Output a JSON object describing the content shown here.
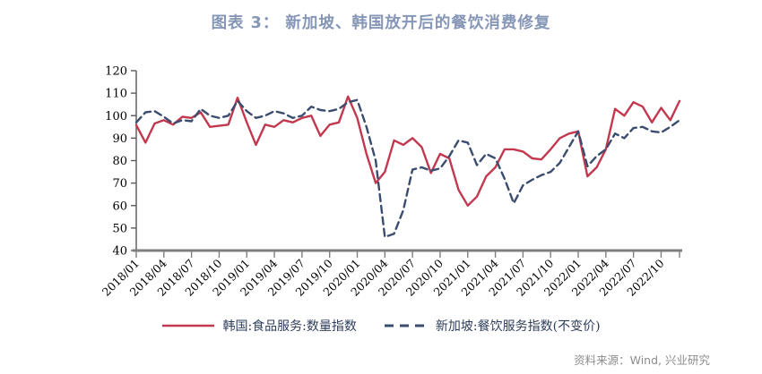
{
  "page": {
    "title": "图表 3： 新加坡、韩国放开后的餐饮消费修复",
    "source": "资料来源：Wind, 兴业研究"
  },
  "colors": {
    "title": "#8696B6",
    "korea_line": "#C2394F",
    "singapore_line": "#3A4D6E",
    "y_axis": "#595959",
    "x_axis": "#7F7F7F",
    "legend_text": "#2F3E5C",
    "source_text": "#8C8C8C"
  },
  "legend": {
    "items": [
      {
        "label": "韩国:食品服务:数量指数",
        "style": "solid",
        "color": "#C2394F"
      },
      {
        "label": "新加坡:餐饮服务指数(不变价)",
        "style": "dashed",
        "color": "#3A4D6E"
      }
    ]
  },
  "chart_data": {
    "type": "line",
    "title": "图表 3： 新加坡、韩国放开后的餐饮消费修复",
    "ylim": [
      40,
      120
    ],
    "yticks": [
      40,
      50,
      60,
      70,
      80,
      90,
      100,
      110,
      120
    ],
    "grid": false,
    "legend_position": "bottom",
    "xtick_every": 3,
    "xticks": [
      "2018/01",
      "2018/04",
      "2018/07",
      "2018/10",
      "2019/01",
      "2019/04",
      "2019/07",
      "2019/10",
      "2020/01",
      "2020/04",
      "2020/07",
      "2020/10",
      "2021/01",
      "2021/04",
      "2021/07",
      "2021/10",
      "2022/01",
      "2022/04",
      "2022/07",
      "2022/10"
    ],
    "x": [
      "2018/01",
      "2018/02",
      "2018/03",
      "2018/04",
      "2018/05",
      "2018/06",
      "2018/07",
      "2018/08",
      "2018/09",
      "2018/10",
      "2018/11",
      "2018/12",
      "2019/01",
      "2019/02",
      "2019/03",
      "2019/04",
      "2019/05",
      "2019/06",
      "2019/07",
      "2019/08",
      "2019/09",
      "2019/10",
      "2019/11",
      "2019/12",
      "2020/01",
      "2020/02",
      "2020/03",
      "2020/04",
      "2020/05",
      "2020/06",
      "2020/07",
      "2020/08",
      "2020/09",
      "2020/10",
      "2020/11",
      "2020/12",
      "2021/01",
      "2021/02",
      "2021/03",
      "2021/04",
      "2021/05",
      "2021/06",
      "2021/07",
      "2021/08",
      "2021/09",
      "2021/10",
      "2021/11",
      "2021/12",
      "2022/01",
      "2022/02",
      "2022/03",
      "2022/04",
      "2022/05",
      "2022/06",
      "2022/07",
      "2022/08",
      "2022/09",
      "2022/10",
      "2022/11",
      "2022/12"
    ],
    "series": [
      {
        "id": "korea",
        "name": "韩国:食品服务:数量指数",
        "color": "#C2394F",
        "line_style": "solid",
        "values": [
          95.8,
          88,
          96.5,
          98,
          96,
          99.5,
          99,
          101.5,
          95,
          95.5,
          96,
          108,
          97,
          87,
          96,
          95,
          98,
          97,
          99,
          100,
          91,
          96,
          97,
          108.5,
          99,
          83,
          70,
          75,
          89,
          87,
          90,
          86,
          74.5,
          83,
          81,
          67,
          60,
          64,
          73,
          77,
          85,
          85,
          84,
          81,
          80.5,
          85,
          90,
          92,
          93,
          73,
          77,
          85,
          103,
          100,
          106,
          104,
          97,
          103.5,
          98,
          106.5
        ]
      },
      {
        "id": "singapore",
        "name": "新加坡:餐饮服务指数(不变价)",
        "color": "#3A4D6E",
        "line_style": "dashed",
        "values": [
          97,
          101.5,
          102,
          99.5,
          96.5,
          98,
          97.5,
          103,
          100,
          99,
          100,
          106.5,
          102,
          99,
          100,
          102,
          101,
          99,
          100,
          104,
          102.5,
          102,
          103,
          106,
          107,
          95,
          80,
          46,
          47.5,
          58,
          76,
          77,
          75.5,
          76.5,
          82,
          89,
          88,
          78,
          83,
          81,
          72,
          61,
          69,
          71.5,
          73.5,
          75,
          79,
          86,
          93,
          77.5,
          82,
          85,
          92,
          90,
          94.5,
          95,
          93,
          92.5,
          95,
          98
        ]
      }
    ]
  }
}
